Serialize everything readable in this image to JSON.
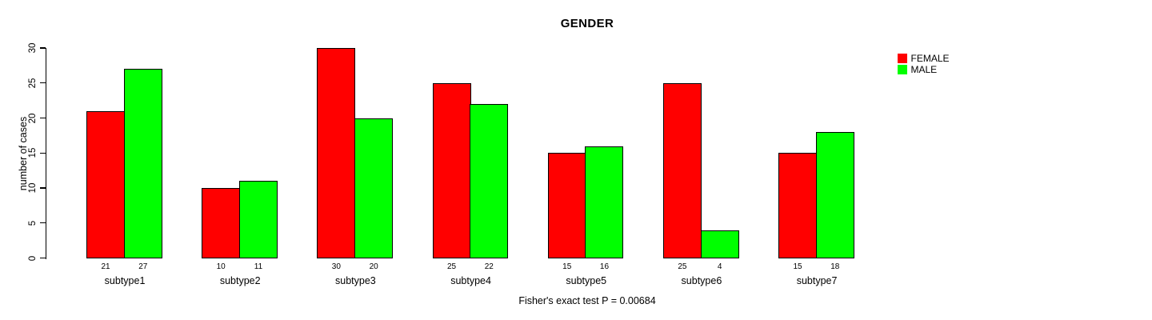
{
  "chart_data": {
    "type": "bar",
    "title": "GENDER",
    "xlabel": "",
    "ylabel": "number of cases",
    "categories": [
      "subtype1",
      "subtype2",
      "subtype3",
      "subtype4",
      "subtype5",
      "subtype6",
      "subtype7"
    ],
    "series": [
      {
        "name": "FEMALE",
        "color": "#FF0000",
        "values": [
          21,
          10,
          30,
          25,
          15,
          25,
          15
        ]
      },
      {
        "name": "MALE",
        "color": "#00FF00",
        "values": [
          27,
          11,
          20,
          22,
          16,
          4,
          18
        ]
      }
    ],
    "ylim": [
      0,
      30
    ],
    "yticks": [
      0,
      5,
      10,
      15,
      20,
      25,
      30
    ],
    "bar_value_labels": true,
    "grid": false,
    "legend_position": "top-right",
    "annotation": "Fisher's exact test P = 0.00684",
    "colors": {
      "female": "#FF0000",
      "male": "#00FF00",
      "axis": "#000000",
      "text": "#000000",
      "background": "#FFFFFF"
    }
  }
}
